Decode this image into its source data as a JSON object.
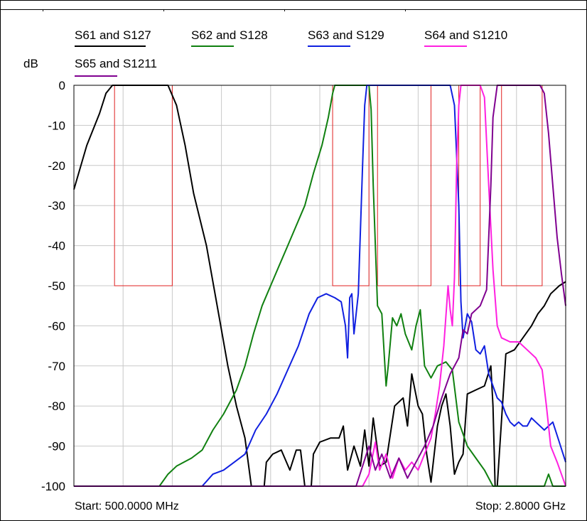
{
  "chart_data": {
    "type": "line",
    "ylabel": "dB",
    "ylim": [
      -100,
      0
    ],
    "yticks": [
      0,
      -10,
      -20,
      -30,
      -40,
      -50,
      -60,
      -70,
      -80,
      -90,
      -100
    ],
    "xlim_mhz": [
      500,
      2800
    ],
    "grid": true,
    "legend_position": "top",
    "start_label": "Start: 500.0000 MHz",
    "stop_label": "Stop: 2.8000 GHz",
    "mask": {
      "color": "#e02020",
      "floor_db": -50,
      "bands_mhz": [
        [
          690,
          960
        ],
        [
          1710,
          1880
        ],
        [
          1920,
          2170
        ],
        [
          2300,
          2400
        ],
        [
          2500,
          2690
        ]
      ]
    },
    "series": [
      {
        "name": "S61 and S127",
        "color": "#000000",
        "points": [
          [
            500,
            -26
          ],
          [
            560,
            -15
          ],
          [
            620,
            -7
          ],
          [
            650,
            -2
          ],
          [
            680,
            0
          ],
          [
            700,
            0
          ],
          [
            800,
            0
          ],
          [
            900,
            0
          ],
          [
            940,
            0
          ],
          [
            980,
            -5
          ],
          [
            1020,
            -15
          ],
          [
            1060,
            -27
          ],
          [
            1120,
            -40
          ],
          [
            1180,
            -58
          ],
          [
            1220,
            -70
          ],
          [
            1260,
            -80
          ],
          [
            1300,
            -88
          ],
          [
            1330,
            -100
          ],
          [
            1360,
            -100
          ],
          [
            1390,
            -100
          ],
          [
            1400,
            -94
          ],
          [
            1430,
            -92
          ],
          [
            1470,
            -91
          ],
          [
            1510,
            -96
          ],
          [
            1540,
            -91
          ],
          [
            1560,
            -91
          ],
          [
            1580,
            -100
          ],
          [
            1610,
            -100
          ],
          [
            1620,
            -92
          ],
          [
            1650,
            -89
          ],
          [
            1700,
            -88
          ],
          [
            1740,
            -88
          ],
          [
            1760,
            -85
          ],
          [
            1780,
            -96
          ],
          [
            1810,
            -90
          ],
          [
            1840,
            -95
          ],
          [
            1860,
            -86
          ],
          [
            1880,
            -95
          ],
          [
            1900,
            -83
          ],
          [
            1930,
            -95
          ],
          [
            1960,
            -94
          ],
          [
            2000,
            -80
          ],
          [
            2040,
            -78
          ],
          [
            2060,
            -85
          ],
          [
            2080,
            -72
          ],
          [
            2110,
            -80
          ],
          [
            2130,
            -82
          ],
          [
            2150,
            -92
          ],
          [
            2170,
            -99
          ],
          [
            2200,
            -85
          ],
          [
            2220,
            -80
          ],
          [
            2240,
            -77
          ],
          [
            2260,
            -85
          ],
          [
            2280,
            -97
          ],
          [
            2300,
            -94
          ],
          [
            2320,
            -92
          ],
          [
            2340,
            -77
          ],
          [
            2380,
            -76
          ],
          [
            2420,
            -75
          ],
          [
            2450,
            -70
          ],
          [
            2460,
            -80
          ],
          [
            2470,
            -100
          ],
          [
            2480,
            -100
          ],
          [
            2520,
            -67
          ],
          [
            2560,
            -66
          ],
          [
            2600,
            -63
          ],
          [
            2640,
            -60
          ],
          [
            2670,
            -57
          ],
          [
            2700,
            -55
          ],
          [
            2730,
            -52
          ],
          [
            2770,
            -50
          ],
          [
            2800,
            -49
          ]
        ]
      },
      {
        "name": "S62 and S128",
        "color": "#108010",
        "points": [
          [
            500,
            -100
          ],
          [
            800,
            -100
          ],
          [
            900,
            -100
          ],
          [
            940,
            -97
          ],
          [
            980,
            -95
          ],
          [
            1050,
            -93
          ],
          [
            1100,
            -91
          ],
          [
            1150,
            -86
          ],
          [
            1200,
            -82
          ],
          [
            1260,
            -76
          ],
          [
            1300,
            -70
          ],
          [
            1340,
            -62
          ],
          [
            1380,
            -55
          ],
          [
            1420,
            -50
          ],
          [
            1460,
            -45
          ],
          [
            1500,
            -40
          ],
          [
            1540,
            -35
          ],
          [
            1580,
            -30
          ],
          [
            1620,
            -22
          ],
          [
            1660,
            -15
          ],
          [
            1690,
            -8
          ],
          [
            1710,
            -2
          ],
          [
            1720,
            0
          ],
          [
            1780,
            0
          ],
          [
            1880,
            0
          ],
          [
            1890,
            -6
          ],
          [
            1900,
            -25
          ],
          [
            1920,
            -55
          ],
          [
            1940,
            -57
          ],
          [
            1960,
            -75
          ],
          [
            1970,
            -70
          ],
          [
            1990,
            -58
          ],
          [
            2010,
            -60
          ],
          [
            2030,
            -57
          ],
          [
            2050,
            -62
          ],
          [
            2080,
            -66
          ],
          [
            2100,
            -60
          ],
          [
            2120,
            -56
          ],
          [
            2140,
            -70
          ],
          [
            2170,
            -73
          ],
          [
            2200,
            -70
          ],
          [
            2240,
            -69
          ],
          [
            2270,
            -71
          ],
          [
            2300,
            -84
          ],
          [
            2340,
            -90
          ],
          [
            2380,
            -93
          ],
          [
            2420,
            -96
          ],
          [
            2460,
            -100
          ],
          [
            2500,
            -100
          ],
          [
            2700,
            -100
          ],
          [
            2720,
            -97
          ],
          [
            2740,
            -100
          ],
          [
            2800,
            -100
          ]
        ]
      },
      {
        "name": "S63 and S129",
        "color": "#1020e0",
        "points": [
          [
            500,
            -100
          ],
          [
            900,
            -100
          ],
          [
            1000,
            -100
          ],
          [
            1100,
            -100
          ],
          [
            1150,
            -97
          ],
          [
            1200,
            -96
          ],
          [
            1250,
            -94
          ],
          [
            1300,
            -92
          ],
          [
            1350,
            -86
          ],
          [
            1400,
            -82
          ],
          [
            1450,
            -77
          ],
          [
            1500,
            -71
          ],
          [
            1550,
            -65
          ],
          [
            1600,
            -57
          ],
          [
            1640,
            -53
          ],
          [
            1680,
            -52
          ],
          [
            1720,
            -53
          ],
          [
            1750,
            -54
          ],
          [
            1770,
            -60
          ],
          [
            1780,
            -68
          ],
          [
            1790,
            -53
          ],
          [
            1800,
            -52
          ],
          [
            1810,
            -62
          ],
          [
            1830,
            -52
          ],
          [
            1850,
            -20
          ],
          [
            1860,
            -5
          ],
          [
            1870,
            0
          ],
          [
            1900,
            0
          ],
          [
            2000,
            0
          ],
          [
            2100,
            0
          ],
          [
            2200,
            0
          ],
          [
            2260,
            0
          ],
          [
            2280,
            -5
          ],
          [
            2300,
            -30
          ],
          [
            2310,
            -54
          ],
          [
            2320,
            -63
          ],
          [
            2340,
            -57
          ],
          [
            2360,
            -59
          ],
          [
            2380,
            -66
          ],
          [
            2400,
            -67
          ],
          [
            2420,
            -65
          ],
          [
            2440,
            -72
          ],
          [
            2460,
            -75
          ],
          [
            2480,
            -78
          ],
          [
            2500,
            -79
          ],
          [
            2520,
            -82
          ],
          [
            2540,
            -84
          ],
          [
            2560,
            -85
          ],
          [
            2580,
            -84
          ],
          [
            2600,
            -85
          ],
          [
            2620,
            -85
          ],
          [
            2640,
            -83
          ],
          [
            2660,
            -84
          ],
          [
            2700,
            -86
          ],
          [
            2740,
            -84
          ],
          [
            2770,
            -89
          ],
          [
            2800,
            -94
          ]
        ]
      },
      {
        "name": "S64 and S1210",
        "color": "#ff20e0",
        "points": [
          [
            500,
            -100
          ],
          [
            1800,
            -100
          ],
          [
            1850,
            -100
          ],
          [
            1880,
            -97
          ],
          [
            1910,
            -89
          ],
          [
            1930,
            -96
          ],
          [
            1960,
            -92
          ],
          [
            1990,
            -98
          ],
          [
            2020,
            -93
          ],
          [
            2050,
            -96
          ],
          [
            2080,
            -94
          ],
          [
            2110,
            -96
          ],
          [
            2140,
            -92
          ],
          [
            2170,
            -88
          ],
          [
            2190,
            -82
          ],
          [
            2210,
            -75
          ],
          [
            2230,
            -65
          ],
          [
            2250,
            -50
          ],
          [
            2260,
            -56
          ],
          [
            2270,
            -60
          ],
          [
            2280,
            -48
          ],
          [
            2290,
            -20
          ],
          [
            2300,
            -5
          ],
          [
            2310,
            0
          ],
          [
            2400,
            0
          ],
          [
            2420,
            -3
          ],
          [
            2440,
            -25
          ],
          [
            2460,
            -46
          ],
          [
            2480,
            -60
          ],
          [
            2500,
            -63
          ],
          [
            2540,
            -64
          ],
          [
            2580,
            -64
          ],
          [
            2620,
            -66
          ],
          [
            2660,
            -68
          ],
          [
            2690,
            -71
          ],
          [
            2710,
            -80
          ],
          [
            2730,
            -90
          ],
          [
            2760,
            -94
          ],
          [
            2780,
            -97
          ],
          [
            2800,
            -100
          ]
        ]
      },
      {
        "name": "S65 and S1211",
        "color": "#800090",
        "points": [
          [
            500,
            -100
          ],
          [
            1820,
            -100
          ],
          [
            1850,
            -95
          ],
          [
            1880,
            -90
          ],
          [
            1910,
            -96
          ],
          [
            1940,
            -92
          ],
          [
            1980,
            -98
          ],
          [
            2020,
            -93
          ],
          [
            2060,
            -98
          ],
          [
            2100,
            -94
          ],
          [
            2140,
            -90
          ],
          [
            2180,
            -85
          ],
          [
            2220,
            -78
          ],
          [
            2260,
            -72
          ],
          [
            2300,
            -68
          ],
          [
            2320,
            -61
          ],
          [
            2340,
            -62
          ],
          [
            2360,
            -57
          ],
          [
            2400,
            -55
          ],
          [
            2430,
            -51
          ],
          [
            2450,
            -25
          ],
          [
            2460,
            -8
          ],
          [
            2480,
            0
          ],
          [
            2560,
            0
          ],
          [
            2620,
            0
          ],
          [
            2680,
            0
          ],
          [
            2700,
            -2
          ],
          [
            2720,
            -12
          ],
          [
            2740,
            -25
          ],
          [
            2760,
            -38
          ],
          [
            2780,
            -47
          ],
          [
            2800,
            -55
          ]
        ]
      }
    ]
  }
}
